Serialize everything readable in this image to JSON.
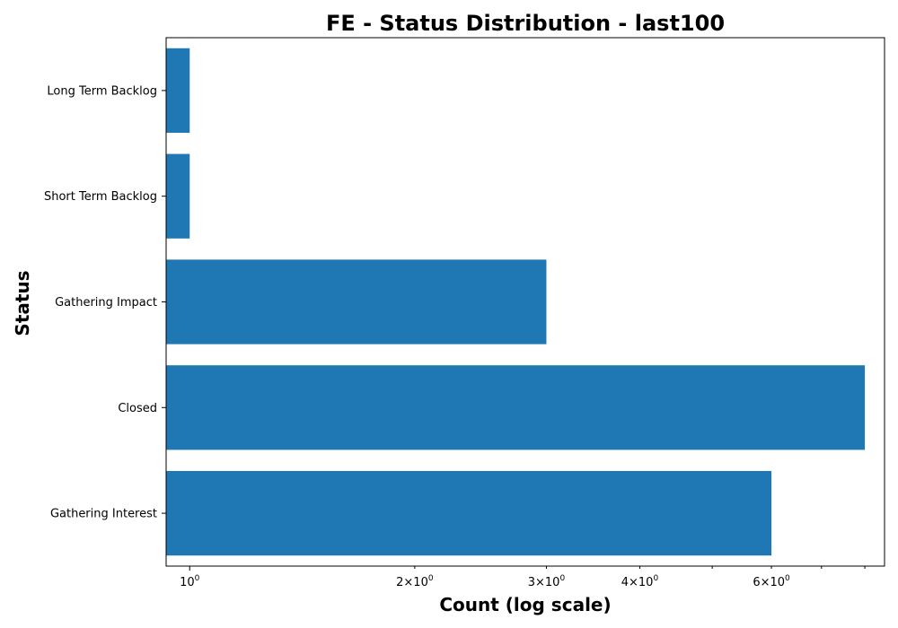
{
  "chart_data": {
    "type": "bar",
    "orientation": "horizontal",
    "title": "FE - Status Distribution - last100",
    "xlabel": "Count (log scale)",
    "ylabel": "Status",
    "x_scale": "log",
    "xlim": [
      0.93,
      8.5
    ],
    "categories": [
      "Gathering Interest",
      "Closed",
      "Gathering Impact",
      "Short Term Backlog",
      "Long Term Backlog"
    ],
    "values": [
      6,
      8,
      3,
      1,
      1
    ],
    "bar_color": "#1f77b4",
    "x_major_ticks": [
      {
        "value": 1,
        "base": "10",
        "exp": "0"
      }
    ],
    "x_minor_ticks": [
      {
        "value": 2,
        "coef": "2",
        "base": "10",
        "exp": "0"
      },
      {
        "value": 3,
        "coef": "3",
        "base": "10",
        "exp": "0"
      },
      {
        "value": 4,
        "coef": "4",
        "base": "10",
        "exp": "0"
      },
      {
        "value": 6,
        "coef": "6",
        "base": "10",
        "exp": "0"
      }
    ],
    "x_unlabeled_minor_ticks": [
      5,
      7,
      8
    ],
    "grid": false,
    "legend": "none"
  }
}
